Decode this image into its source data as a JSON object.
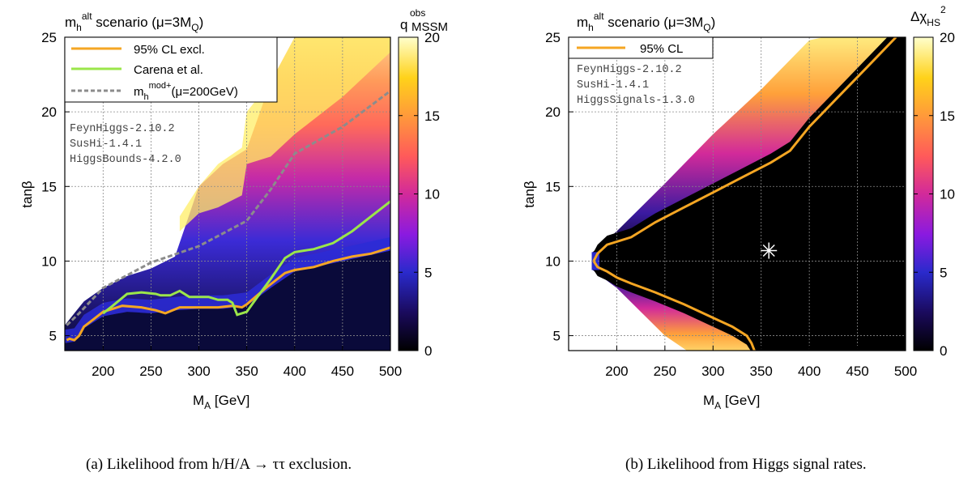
{
  "captions": {
    "a": "(a) Likelihood from h/H/A → ττ exclusion.",
    "b": "(b) Likelihood from Higgs signal rates."
  },
  "colors": {
    "orange_contour": "#f5a623",
    "green_carena": "#9be64a",
    "gray_mod": "#8c8c8c",
    "palette": [
      "#000000",
      "#1a0a5c",
      "#2a2acc",
      "#8a1ae0",
      "#d22a9a",
      "#ff5a5a",
      "#ff9a3a",
      "#ffd21a",
      "#ffff99",
      "#ffffcc"
    ]
  },
  "chart_data": [
    {
      "type": "heatmap",
      "panel": "a",
      "title": {
        "main": "m",
        "sub": "h",
        "sup": "alt",
        "rest": " scenario (μ=3M",
        "sub2": "Q",
        "end": ")"
      },
      "xlabel": {
        "main": "M",
        "sub": "A",
        "rest": " [GeV]"
      },
      "ylabel": "tanβ",
      "xlim": [
        160,
        500
      ],
      "ylim": [
        4,
        25
      ],
      "xticks": [
        200,
        250,
        300,
        350,
        400,
        450,
        500
      ],
      "yticks": [
        5,
        10,
        15,
        20,
        25
      ],
      "grid": true,
      "colorbar": {
        "label_main": "q",
        "label_sup": "obs",
        "label_sub": "MSSM",
        "range": [
          0,
          20
        ],
        "ticks": [
          0,
          5,
          10,
          15,
          20
        ]
      },
      "legend": {
        "position": "top-left",
        "entries": [
          {
            "label": "95% CL excl.",
            "color_key": "orange_contour",
            "style": "solid"
          },
          {
            "label": "Carena et al.",
            "color_key": "green_carena",
            "style": "solid"
          },
          {
            "label_main": "m",
            "label_sub": "h",
            "label_sup": "mod+",
            "label_rest": "(μ=200GeV)",
            "color_key": "gray_mod",
            "style": "dashed"
          }
        ]
      },
      "annotations": [
        "FeynHiggs-2.10.2",
        "SusHi-1.4.1",
        "HiggsBounds-4.2.0"
      ],
      "series": [
        {
          "name": "95% CL excl.",
          "x": [
            162,
            165,
            170,
            175,
            180,
            190,
            200,
            210,
            220,
            240,
            255,
            265,
            280,
            300,
            320,
            335,
            345,
            350,
            370,
            390,
            400,
            420,
            440,
            460,
            480,
            500
          ],
          "y": [
            4.7,
            4.8,
            4.7,
            5.0,
            5.6,
            6.1,
            6.6,
            6.8,
            7.0,
            6.9,
            6.7,
            6.5,
            6.9,
            6.9,
            6.9,
            7.0,
            6.9,
            7.1,
            8.2,
            9.2,
            9.4,
            9.6,
            10.0,
            10.3,
            10.5,
            10.9
          ]
        },
        {
          "name": "Carena et al.",
          "x": [
            200,
            210,
            225,
            240,
            255,
            260,
            270,
            280,
            290,
            310,
            320,
            330,
            335,
            340,
            350,
            360,
            375,
            390,
            400,
            410,
            420,
            440,
            460,
            480,
            500
          ],
          "y": [
            6.5,
            7.0,
            7.8,
            7.9,
            7.8,
            7.7,
            7.7,
            8.0,
            7.6,
            7.6,
            7.4,
            7.4,
            7.2,
            6.4,
            6.6,
            7.5,
            8.8,
            10.2,
            10.6,
            10.7,
            10.8,
            11.2,
            12.0,
            13.0,
            14.0
          ]
        },
        {
          "name": "mh mod+ (μ=200GeV)",
          "x": [
            162,
            175,
            200,
            250,
            300,
            350,
            375,
            400,
            450,
            500
          ],
          "y": [
            5.7,
            6.5,
            8.2,
            9.9,
            11.0,
            12.7,
            14.8,
            17.2,
            19.0,
            21.4
          ]
        }
      ],
      "heatmap_boundaries": {
        "x": [
          160,
          170,
          180,
          200,
          225,
          250,
          275,
          300,
          325,
          350,
          375,
          400,
          450,
          500
        ],
        "dark_top_y": [
          4.5,
          4.6,
          5.5,
          6.3,
          6.6,
          6.5,
          6.7,
          6.8,
          6.8,
          7.0,
          8.2,
          9.3,
          10.0,
          10.7
        ],
        "colored_top_y": [
          5.7,
          6.5,
          7.3,
          8.2,
          9.0,
          9.5,
          10.3,
          15.0,
          16.5,
          17.5,
          22.0,
          25.0,
          25.0,
          25.0
        ]
      }
    },
    {
      "type": "heatmap",
      "panel": "b",
      "title": {
        "main": "m",
        "sub": "h",
        "sup": "alt",
        "rest": " scenario (μ=3M",
        "sub2": "Q",
        "end": ")"
      },
      "xlabel": {
        "main": "M",
        "sub": "A",
        "rest": " [GeV]"
      },
      "ylabel": "tanβ",
      "xlim": [
        150,
        500
      ],
      "ylim": [
        4,
        25
      ],
      "xticks": [
        200,
        250,
        300,
        350,
        400,
        450,
        500
      ],
      "yticks": [
        5,
        10,
        15,
        20,
        25
      ],
      "grid": true,
      "colorbar": {
        "label_main": "Δχ",
        "label_sub": "HS",
        "label_sup": "2",
        "range": [
          0,
          20
        ],
        "ticks": [
          0,
          5,
          10,
          15,
          20
        ]
      },
      "legend": {
        "position": "top-left",
        "entries": [
          {
            "label": "95% CL",
            "color_key": "orange_contour",
            "style": "solid"
          }
        ]
      },
      "annotations": [
        "FeynHiggs-2.10.2",
        "SusHi-1.4.1",
        "HiggsSignals-1.3.0"
      ],
      "best_fit": {
        "x": 358,
        "y": 10.7,
        "marker": "asterisk"
      },
      "series": [
        {
          "name": "95% CL upper",
          "x": [
            176,
            180,
            190,
            200,
            215,
            240,
            270,
            300,
            330,
            360,
            380,
            400,
            430,
            460,
            490
          ],
          "y": [
            10.0,
            10.5,
            11.1,
            11.3,
            11.6,
            12.6,
            13.6,
            14.6,
            15.6,
            16.6,
            17.4,
            19.0,
            21.0,
            23.0,
            25.0
          ]
        },
        {
          "name": "95% CL lower",
          "x": [
            176,
            180,
            190,
            200,
            215,
            240,
            270,
            300,
            320,
            335,
            340,
            343
          ],
          "y": [
            10.0,
            9.6,
            9.3,
            8.9,
            8.5,
            7.9,
            7.1,
            6.2,
            5.6,
            5.0,
            4.5,
            4.0
          ]
        }
      ],
      "heatmap_boundaries": {
        "wedge_tip": [
          175,
          10.0
        ],
        "upper_outer_y_at": {
          "x": [
            175,
            200,
            250,
            300,
            350,
            400,
            450,
            500
          ],
          "y": [
            10.6,
            12.0,
            15.2,
            18.5,
            21.5,
            24.8,
            25.5,
            26
          ]
        },
        "lower_outer_y_at": {
          "x": [
            175,
            200,
            225,
            250,
            275,
            300
          ],
          "y": [
            9.4,
            8.2,
            6.6,
            5.0,
            3.9,
            3.0
          ]
        }
      }
    }
  ]
}
